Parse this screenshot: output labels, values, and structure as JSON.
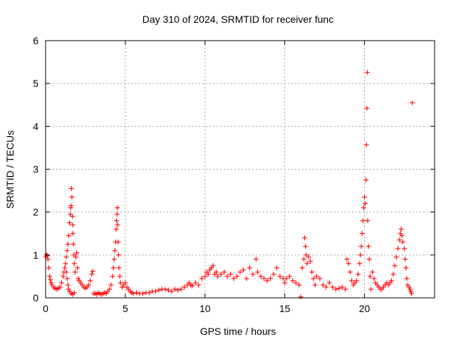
{
  "chart_data": {
    "type": "scatter",
    "title": "Day 310 of 2024, SRMTID for receiver func",
    "xlabel": "GPS time / hours",
    "ylabel": "SRMTID / TECUs",
    "xlim": [
      0,
      24.4
    ],
    "ylim": [
      0,
      6
    ],
    "x_ticks": [
      0,
      5,
      10,
      15,
      20
    ],
    "x_tick_labels": [
      "0",
      "5",
      "10",
      "15",
      "20"
    ],
    "y_ticks": [
      0,
      1,
      2,
      3,
      4,
      5,
      6
    ],
    "y_tick_labels": [
      "0",
      "1",
      "2",
      "3",
      "4",
      "5",
      "6"
    ],
    "grid": true,
    "marker": "+",
    "series_color": "#ff0000",
    "series": [
      {
        "name": "SRMTID",
        "points": [
          [
            0.0,
            0.95
          ],
          [
            0.05,
            1.0
          ],
          [
            0.1,
            0.98
          ],
          [
            0.15,
            0.9
          ],
          [
            0.2,
            0.7
          ],
          [
            0.25,
            0.5
          ],
          [
            0.3,
            0.42
          ],
          [
            0.35,
            0.35
          ],
          [
            0.4,
            0.3
          ],
          [
            0.5,
            0.25
          ],
          [
            0.6,
            0.22
          ],
          [
            0.7,
            0.2
          ],
          [
            0.8,
            0.22
          ],
          [
            0.9,
            0.25
          ],
          [
            1.0,
            0.35
          ],
          [
            1.1,
            0.5
          ],
          [
            1.15,
            0.6
          ],
          [
            1.2,
            0.7
          ],
          [
            1.25,
            0.8
          ],
          [
            1.3,
            0.6
          ],
          [
            1.35,
            0.45
          ],
          [
            1.4,
            0.3
          ],
          [
            1.45,
            0.2
          ],
          [
            1.3,
            0.95
          ],
          [
            1.35,
            1.1
          ],
          [
            1.4,
            1.25
          ],
          [
            1.45,
            1.45
          ],
          [
            1.5,
            1.75
          ],
          [
            1.55,
            1.95
          ],
          [
            1.58,
            2.1
          ],
          [
            1.6,
            2.15
          ],
          [
            1.62,
            2.55
          ],
          [
            1.65,
            2.35
          ],
          [
            1.68,
            1.9
          ],
          [
            1.7,
            1.7
          ],
          [
            1.72,
            1.5
          ],
          [
            1.75,
            1.25
          ],
          [
            1.78,
            1.0
          ],
          [
            1.8,
            0.8
          ],
          [
            1.85,
            0.6
          ],
          [
            1.9,
            0.95
          ],
          [
            1.95,
            1.05
          ],
          [
            2.0,
            0.7
          ],
          [
            1.5,
            0.15
          ],
          [
            1.6,
            0.1
          ],
          [
            1.7,
            0.08
          ],
          [
            1.8,
            0.12
          ],
          [
            2.05,
            0.45
          ],
          [
            2.1,
            0.4
          ],
          [
            2.2,
            0.35
          ],
          [
            2.3,
            0.3
          ],
          [
            2.4,
            0.25
          ],
          [
            2.5,
            0.22
          ],
          [
            2.6,
            0.25
          ],
          [
            2.7,
            0.3
          ],
          [
            2.8,
            0.4
          ],
          [
            2.9,
            0.55
          ],
          [
            2.95,
            0.62
          ],
          [
            3.0,
            0.1
          ],
          [
            3.1,
            0.1
          ],
          [
            3.2,
            0.08
          ],
          [
            3.3,
            0.12
          ],
          [
            3.4,
            0.1
          ],
          [
            3.5,
            0.08
          ],
          [
            3.6,
            0.1
          ],
          [
            3.7,
            0.12
          ],
          [
            3.8,
            0.1
          ],
          [
            3.9,
            0.15
          ],
          [
            4.0,
            0.2
          ],
          [
            4.1,
            0.3
          ],
          [
            4.2,
            0.5
          ],
          [
            4.25,
            0.7
          ],
          [
            4.3,
            0.9
          ],
          [
            4.35,
            1.1
          ],
          [
            4.4,
            1.3
          ],
          [
            4.42,
            1.6
          ],
          [
            4.45,
            1.8
          ],
          [
            4.48,
            1.95
          ],
          [
            4.5,
            2.1
          ],
          [
            4.52,
            1.7
          ],
          [
            4.55,
            1.3
          ],
          [
            4.58,
            1.0
          ],
          [
            4.6,
            0.7
          ],
          [
            4.65,
            0.5
          ],
          [
            4.7,
            0.35
          ],
          [
            4.8,
            0.25
          ],
          [
            4.9,
            0.3
          ],
          [
            5.0,
            0.35
          ],
          [
            5.1,
            0.25
          ],
          [
            5.2,
            0.2
          ],
          [
            5.3,
            0.15
          ],
          [
            5.4,
            0.12
          ],
          [
            5.5,
            0.1
          ],
          [
            5.7,
            0.12
          ],
          [
            5.9,
            0.1
          ],
          [
            6.1,
            0.1
          ],
          [
            6.3,
            0.12
          ],
          [
            6.5,
            0.12
          ],
          [
            6.7,
            0.15
          ],
          [
            6.9,
            0.15
          ],
          [
            7.1,
            0.18
          ],
          [
            7.3,
            0.2
          ],
          [
            7.5,
            0.2
          ],
          [
            7.7,
            0.18
          ],
          [
            7.9,
            0.15
          ],
          [
            8.1,
            0.2
          ],
          [
            8.3,
            0.18
          ],
          [
            8.5,
            0.2
          ],
          [
            8.7,
            0.25
          ],
          [
            8.9,
            0.3
          ],
          [
            9.0,
            0.35
          ],
          [
            9.1,
            0.3
          ],
          [
            9.2,
            0.28
          ],
          [
            9.4,
            0.35
          ],
          [
            9.6,
            0.3
          ],
          [
            9.8,
            0.45
          ],
          [
            10.0,
            0.5
          ],
          [
            10.1,
            0.6
          ],
          [
            10.2,
            0.55
          ],
          [
            10.3,
            0.65
          ],
          [
            10.4,
            0.7
          ],
          [
            10.5,
            0.75
          ],
          [
            10.6,
            0.55
          ],
          [
            10.7,
            0.6
          ],
          [
            10.8,
            0.5
          ],
          [
            11.0,
            0.55
          ],
          [
            11.2,
            0.6
          ],
          [
            11.4,
            0.5
          ],
          [
            11.6,
            0.55
          ],
          [
            11.8,
            0.45
          ],
          [
            12.0,
            0.5
          ],
          [
            12.2,
            0.6
          ],
          [
            12.4,
            0.65
          ],
          [
            12.6,
            0.45
          ],
          [
            12.8,
            0.7
          ],
          [
            13.0,
            0.55
          ],
          [
            13.2,
            0.9
          ],
          [
            13.3,
            0.6
          ],
          [
            13.5,
            0.5
          ],
          [
            13.7,
            0.45
          ],
          [
            13.9,
            0.4
          ],
          [
            14.1,
            0.45
          ],
          [
            14.3,
            0.55
          ],
          [
            14.5,
            0.7
          ],
          [
            14.7,
            0.5
          ],
          [
            14.9,
            0.45
          ],
          [
            15.0,
            0.35
          ],
          [
            15.1,
            0.45
          ],
          [
            15.3,
            0.5
          ],
          [
            15.5,
            0.4
          ],
          [
            15.7,
            0.35
          ],
          [
            15.9,
            0.3
          ],
          [
            16.0,
            0.02
          ],
          [
            16.1,
            0.7
          ],
          [
            16.2,
            0.9
          ],
          [
            16.25,
            1.4
          ],
          [
            16.3,
            1.2
          ],
          [
            16.35,
            1.0
          ],
          [
            16.4,
            0.8
          ],
          [
            16.5,
            0.95
          ],
          [
            16.6,
            0.85
          ],
          [
            16.7,
            0.6
          ],
          [
            16.8,
            0.45
          ],
          [
            16.9,
            0.3
          ],
          [
            17.0,
            0.5
          ],
          [
            17.2,
            0.45
          ],
          [
            17.4,
            0.3
          ],
          [
            17.6,
            0.25
          ],
          [
            17.8,
            0.35
          ],
          [
            18.0,
            0.25
          ],
          [
            18.2,
            0.2
          ],
          [
            18.4,
            0.22
          ],
          [
            18.6,
            0.25
          ],
          [
            18.8,
            0.2
          ],
          [
            18.9,
            0.9
          ],
          [
            19.0,
            0.8
          ],
          [
            19.1,
            0.6
          ],
          [
            19.2,
            0.4
          ],
          [
            19.3,
            0.3
          ],
          [
            19.4,
            0.35
          ],
          [
            19.5,
            0.4
          ],
          [
            19.6,
            0.55
          ],
          [
            19.7,
            0.8
          ],
          [
            19.75,
            1.0
          ],
          [
            19.8,
            1.2
          ],
          [
            19.85,
            1.5
          ],
          [
            19.9,
            1.8
          ],
          [
            19.95,
            2.1
          ],
          [
            20.0,
            2.35
          ],
          [
            20.05,
            2.2
          ],
          [
            20.1,
            2.75
          ],
          [
            20.12,
            3.57
          ],
          [
            20.15,
            4.42
          ],
          [
            20.18,
            5.26
          ],
          [
            20.2,
            1.8
          ],
          [
            20.25,
            1.2
          ],
          [
            20.3,
            0.9
          ],
          [
            20.35,
            0.5
          ],
          [
            20.4,
            0.2
          ],
          [
            20.5,
            0.6
          ],
          [
            20.6,
            0.45
          ],
          [
            20.7,
            0.35
          ],
          [
            20.8,
            0.3
          ],
          [
            20.9,
            0.25
          ],
          [
            21.0,
            0.2
          ],
          [
            21.1,
            0.2
          ],
          [
            21.2,
            0.25
          ],
          [
            21.3,
            0.3
          ],
          [
            21.4,
            0.35
          ],
          [
            21.5,
            0.3
          ],
          [
            21.6,
            0.35
          ],
          [
            21.7,
            0.4
          ],
          [
            21.8,
            0.55
          ],
          [
            21.9,
            0.75
          ],
          [
            22.0,
            0.95
          ],
          [
            22.1,
            1.15
          ],
          [
            22.2,
            1.35
          ],
          [
            22.25,
            1.5
          ],
          [
            22.3,
            1.6
          ],
          [
            22.35,
            1.45
          ],
          [
            22.4,
            1.3
          ],
          [
            22.5,
            1.15
          ],
          [
            22.55,
            0.9
          ],
          [
            22.6,
            0.7
          ],
          [
            22.65,
            0.45
          ],
          [
            22.7,
            0.3
          ],
          [
            22.8,
            0.25
          ],
          [
            22.85,
            0.2
          ],
          [
            22.9,
            0.15
          ],
          [
            22.95,
            0.1
          ],
          [
            23.0,
            4.55
          ]
        ]
      }
    ]
  }
}
